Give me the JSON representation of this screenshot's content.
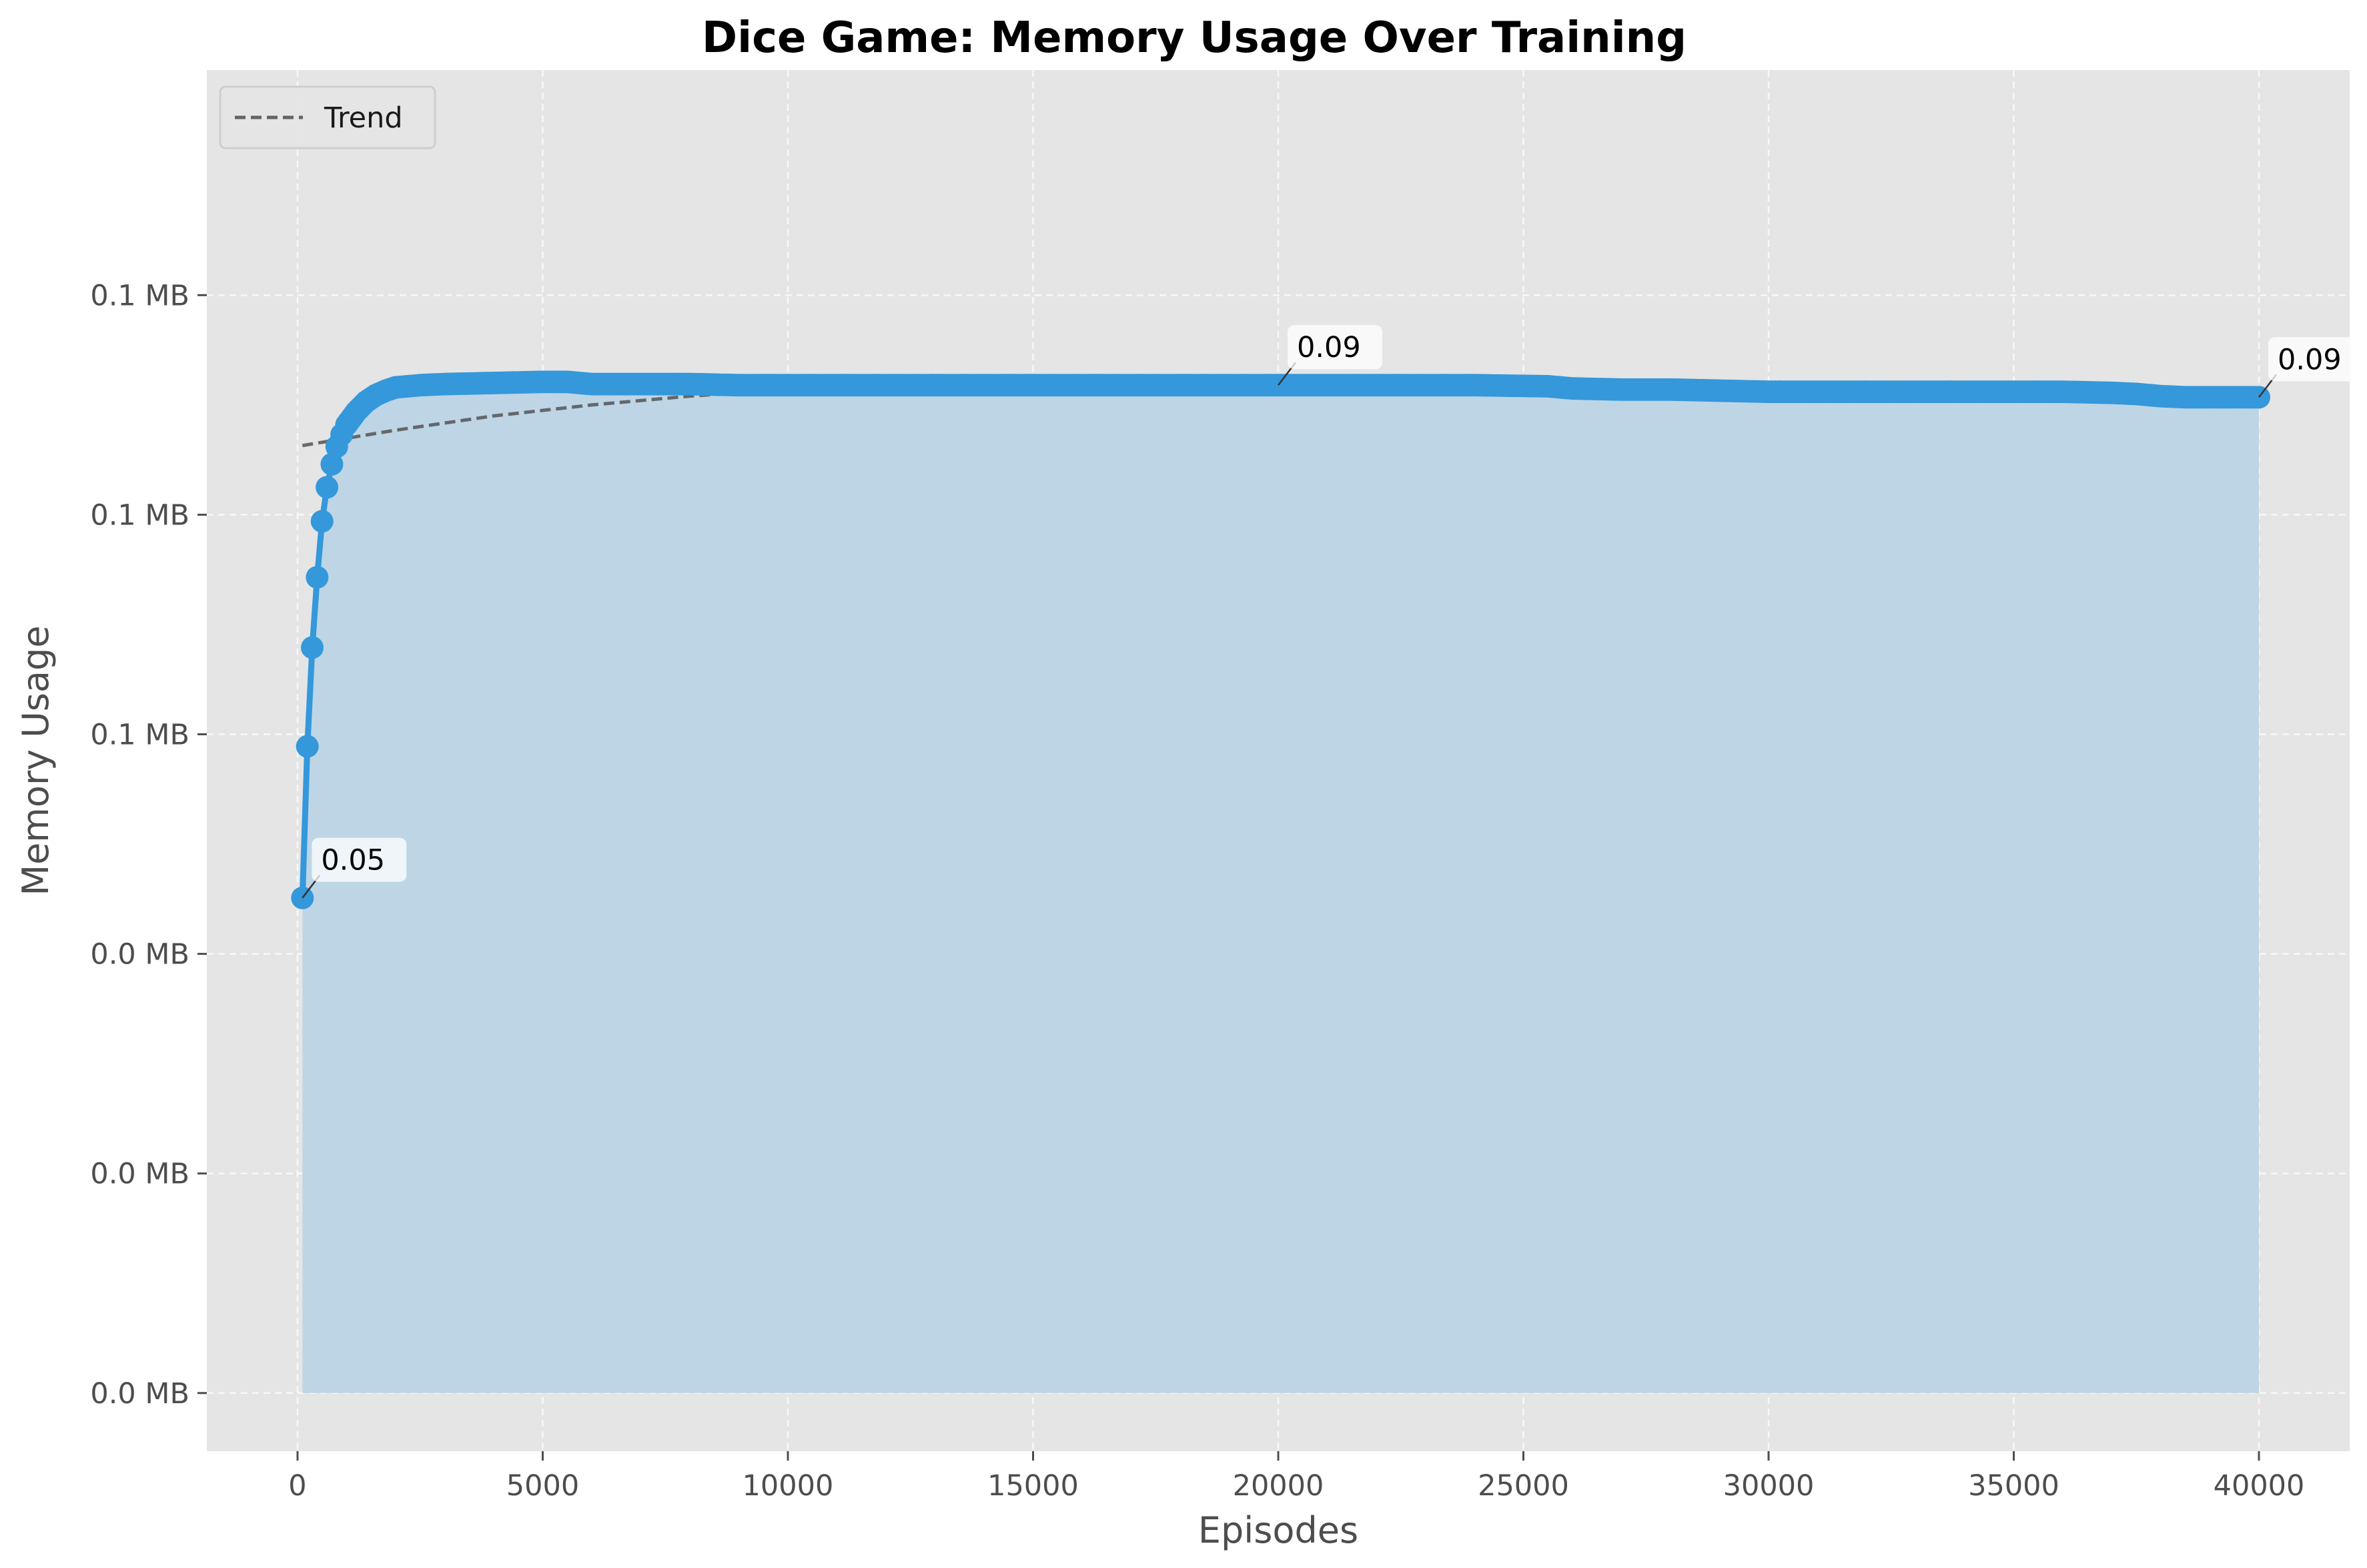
{
  "chart_data": {
    "type": "line",
    "title": "Dice Game: Memory Usage Over Training",
    "xlabel": "Episodes",
    "ylabel": "Memory Usage",
    "xlim": [
      -1850,
      41850
    ],
    "ylim": [
      -0.0053,
      0.1205
    ],
    "x_ticks": [
      0,
      5000,
      10000,
      15000,
      20000,
      25000,
      30000,
      35000,
      40000
    ],
    "x_tick_labels": [
      "0",
      "5000",
      "10000",
      "15000",
      "20000",
      "25000",
      "30000",
      "35000",
      "40000"
    ],
    "y_ticks": [
      0.0,
      0.02,
      0.04,
      0.06,
      0.08,
      0.1
    ],
    "y_tick_labels": [
      "0.0 MB",
      "0.0 MB",
      "0.0 MB",
      "0.1 MB",
      "0.1 MB",
      "0.1 MB"
    ],
    "grid": true,
    "legend_position": "upper left",
    "colors": {
      "series": "#3498db",
      "fill": "#bed5e6",
      "trend": "#555555",
      "background": "#e5e5e5"
    },
    "series": [
      {
        "name": "",
        "x": [
          100,
          200,
          300,
          400,
          500,
          600,
          700,
          800,
          900,
          1000,
          1200,
          1400,
          1600,
          1800,
          2000,
          2500,
          3000,
          4000,
          5000,
          5500,
          6000,
          7000,
          8000,
          9000,
          10000,
          12000,
          14000,
          16000,
          18000,
          20000,
          22000,
          24000,
          25500,
          26000,
          27000,
          28000,
          29000,
          30000,
          32000,
          34000,
          36000,
          37000,
          37500,
          38000,
          38500,
          39000,
          39500,
          40000
        ],
        "y": [
          0.0451,
          0.0589,
          0.0679,
          0.0743,
          0.0794,
          0.0825,
          0.0846,
          0.0862,
          0.0873,
          0.0882,
          0.0894,
          0.0903,
          0.0909,
          0.0913,
          0.0916,
          0.0918,
          0.0919,
          0.092,
          0.0921,
          0.0921,
          0.0919,
          0.0919,
          0.0919,
          0.0918,
          0.0918,
          0.0918,
          0.0918,
          0.0918,
          0.0918,
          0.0918,
          0.0918,
          0.0918,
          0.0917,
          0.0915,
          0.0914,
          0.0914,
          0.0913,
          0.0912,
          0.0912,
          0.0912,
          0.0912,
          0.0911,
          0.091,
          0.0908,
          0.0907,
          0.0907,
          0.0907,
          0.0907
        ]
      }
    ],
    "trend": {
      "name": "Trend",
      "x": [
        100,
        2000,
        4000,
        6000,
        8000,
        10000,
        12000,
        14000,
        16000,
        18000,
        20000,
        22000,
        24000,
        26000,
        28000,
        30000,
        32000,
        34000,
        36000,
        38000,
        40000
      ],
      "y": [
        0.0863,
        0.0877,
        0.089,
        0.09,
        0.0908,
        0.0914,
        0.0918,
        0.092,
        0.092,
        0.0919,
        0.0918,
        0.0916,
        0.0914,
        0.0912,
        0.0911,
        0.091,
        0.0909,
        0.0909,
        0.091,
        0.0911,
        0.0913
      ]
    },
    "annotations": [
      {
        "text": "0.05",
        "x": 100,
        "y": 0.0451
      },
      {
        "text": "0.09",
        "x": 20000,
        "y": 0.0918
      },
      {
        "text": "0.09",
        "x": 40000,
        "y": 0.0907
      }
    ]
  }
}
